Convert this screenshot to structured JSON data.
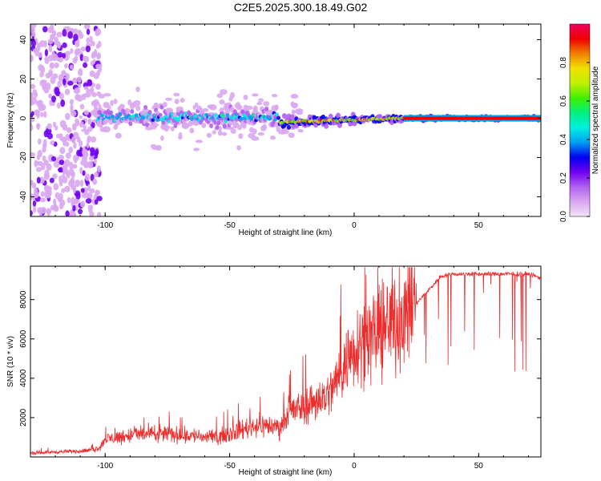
{
  "title": "C2E5.2025.300.18.49.G02",
  "chart_data": [
    {
      "type": "heatmap",
      "name": "spectrogram",
      "xlabel": "Height of straight line (km)",
      "ylabel": "Frequency (Hz)",
      "xlim": [
        -130,
        75
      ],
      "ylim": [
        -50,
        48
      ],
      "xticks": [
        -100,
        -50,
        0,
        50
      ],
      "yticks": [
        -40,
        -20,
        0,
        20,
        40
      ],
      "xtick_labels": [
        "-100",
        "-50",
        "0",
        "50"
      ],
      "ytick_labels": [
        "-40",
        "-20",
        "0",
        "20",
        "40"
      ],
      "colorbar": {
        "label": "Normalized spectral amplitude",
        "range": [
          0,
          1
        ],
        "ticks": [
          0.0,
          0.2,
          0.4,
          0.6,
          0.8
        ],
        "tick_labels": [
          "0.0",
          "0.2",
          "0.4",
          "0.6",
          "0.8"
        ],
        "colors": [
          "#f2e4f8",
          "#d9a8f0",
          "#b060f0",
          "#7000f0",
          "#0000f0",
          "#00a0f0",
          "#00f0e0",
          "#00f080",
          "#40f000",
          "#c0f000",
          "#f0e000",
          "#f08000",
          "#f00000",
          "#f00060"
        ]
      },
      "features": [
        {
          "region": "below -105 km",
          "description": "diffuse noise across all frequencies",
          "amplitude": 0.15
        },
        {
          "region": "-105 to -30 km",
          "center_frequency": 0,
          "spread_hz": 8,
          "amplitude": 0.4
        },
        {
          "region": "-30 to 20 km",
          "center_frequency": -2,
          "spread_hz": 3,
          "amplitude": 0.8
        },
        {
          "region": "20 to 75 km",
          "center_frequency": 0,
          "spread_hz": 1,
          "amplitude": 1.0
        }
      ]
    },
    {
      "type": "line",
      "name": "snr",
      "xlabel": "Height of straight line (km)",
      "ylabel": "SNR (10 * v/v)",
      "xlim": [
        -130,
        75
      ],
      "ylim": [
        0,
        9700
      ],
      "xticks": [
        -100,
        -50,
        0,
        50
      ],
      "yticks": [
        2000,
        4000,
        6000,
        8000
      ],
      "xtick_labels": [
        "-100",
        "-50",
        "0",
        "50"
      ],
      "ytick_labels": [
        "2000",
        "4000",
        "6000",
        "8000"
      ],
      "color": "#ee2c2c",
      "x": [
        -130,
        -120,
        -110,
        -105,
        -102,
        -100,
        -95,
        -90,
        -85,
        -80,
        -75,
        -70,
        -65,
        -60,
        -55,
        -50,
        -45,
        -40,
        -35,
        -30,
        -25,
        -20,
        -15,
        -10,
        -5,
        0,
        5,
        10,
        15,
        20,
        25,
        30,
        35,
        40,
        45,
        50,
        55,
        60,
        65,
        70,
        75
      ],
      "values": [
        200,
        250,
        300,
        350,
        500,
        900,
        1000,
        1100,
        1200,
        1100,
        1200,
        1100,
        1100,
        1000,
        1000,
        1200,
        1400,
        1600,
        1600,
        1500,
        2300,
        2600,
        2900,
        3200,
        4400,
        5600,
        6200,
        6200,
        6900,
        7100,
        7800,
        8500,
        9200,
        9300,
        9300,
        9300,
        9300,
        9300,
        9300,
        9300,
        9100
      ]
    }
  ]
}
